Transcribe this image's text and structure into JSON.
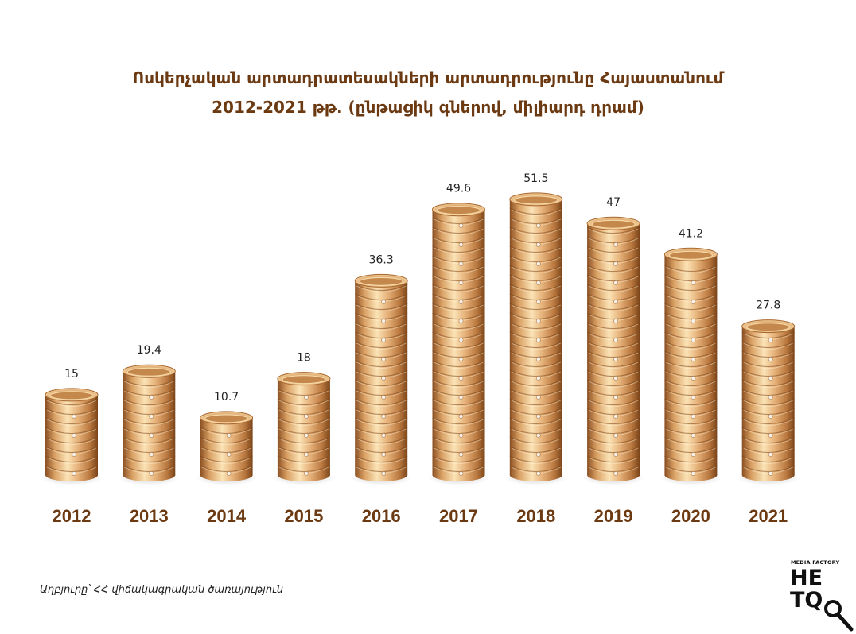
{
  "title": {
    "line1": "Ոսկերչական արտադրատեսակների արտադրությունը Հայաստանում",
    "line2": "2012-2021 թթ. (ընթացիկ գներով, միլիարդ դրամ)"
  },
  "source": "Աղբյուրը՝ ՀՀ վիճակագրական ծառայություն",
  "logo": {
    "top": "MEDIA FACTORY",
    "word_line1": "HE",
    "word_line2": "TQ"
  },
  "colors": {
    "title": "#6b3a12",
    "gold_light": "#f8d9a6",
    "gold_mid": "#d9a064",
    "gold_dark": "#9a5a28"
  },
  "chart_data": {
    "type": "bar",
    "categories": [
      "2012",
      "2013",
      "2014",
      "2015",
      "2016",
      "2017",
      "2018",
      "2019",
      "2020",
      "2021"
    ],
    "values": [
      15,
      19.4,
      10.7,
      18,
      36.3,
      49.6,
      51.5,
      47,
      41.2,
      27.8
    ],
    "value_labels": [
      "15",
      "19.4",
      "10.7",
      "18",
      "36.3",
      "49.6",
      "51.5",
      "47",
      "41.2",
      "27.8"
    ],
    "ylim": [
      0,
      55
    ],
    "grid": false,
    "legend": "none",
    "xlabel": "",
    "ylabel": ""
  }
}
